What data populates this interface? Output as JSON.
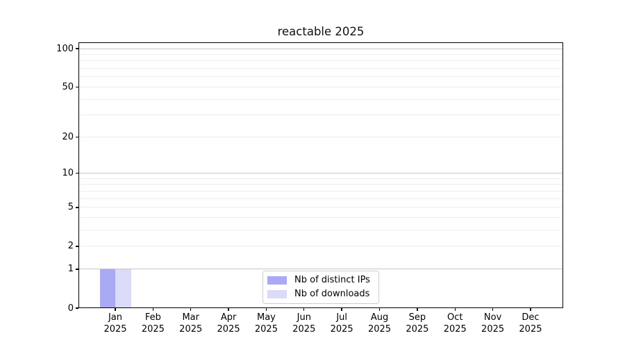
{
  "chart_data": {
    "type": "bar",
    "title": "reactable 2025",
    "x_months": [
      "Jan",
      "Feb",
      "Mar",
      "Apr",
      "May",
      "Jun",
      "Jul",
      "Aug",
      "Sep",
      "Oct",
      "Nov",
      "Dec"
    ],
    "x_year": "2025",
    "series": [
      {
        "name": "Nb of distinct IPs",
        "color": "#a9a9f6",
        "values": [
          1,
          0,
          0,
          0,
          0,
          0,
          0,
          0,
          0,
          0,
          0,
          0
        ]
      },
      {
        "name": "Nb of downloads",
        "color": "#dbdbf9",
        "values": [
          1,
          0,
          0,
          0,
          0,
          0,
          0,
          0,
          0,
          0,
          0,
          0
        ]
      }
    ],
    "y_scale": "log1p",
    "ylim": [
      0,
      112
    ],
    "y_tick_labels": [
      0,
      1,
      2,
      5,
      10,
      20,
      50,
      100
    ],
    "y_major_gridlines": [
      1,
      10,
      100
    ],
    "y_minor_gridlines": [
      2,
      3,
      4,
      5,
      6,
      7,
      8,
      9,
      20,
      30,
      40,
      50,
      60,
      70,
      80,
      90
    ],
    "legend_position": "lower center",
    "grid": true,
    "colors": {
      "background": "#ffffff",
      "spine": "#000000",
      "text": "#000000",
      "major_grid": "#c6c6c6",
      "minor_grid": "#ededed",
      "legend_border": "#cccccc"
    }
  }
}
